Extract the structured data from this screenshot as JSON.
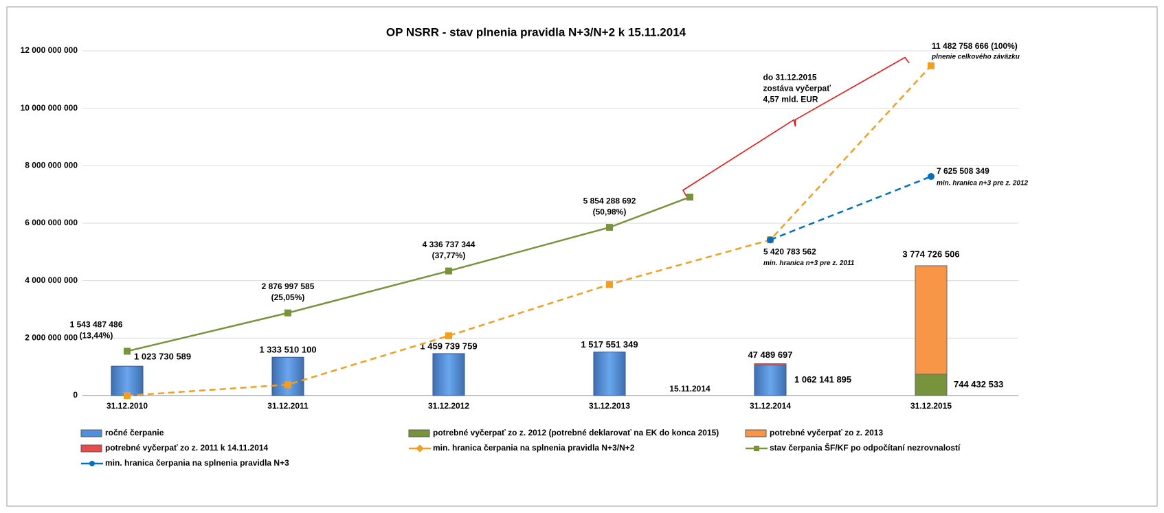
{
  "chart_data": {
    "type": "combo",
    "title": "OP NSRR - stav plnenia pravidla N+3/N+2 k 15.11.2014",
    "categories": [
      "31.12.2010",
      "31.12.2011",
      "31.12.2012",
      "31.12.2013",
      "31.12.2014",
      "31.12.2015"
    ],
    "ylim": [
      0,
      12000000000
    ],
    "yticks": [
      0,
      {
        "value": 2000000000,
        "label": "2 000 000 000"
      },
      {
        "value": 4000000000,
        "label": "4 000 000 000"
      },
      {
        "value": 6000000000,
        "label": "6 000 000 000"
      },
      {
        "value": 8000000000,
        "label": "8 000 000 000"
      },
      {
        "value": 10000000000,
        "label": "10 000 000 000"
      },
      {
        "value": 12000000000,
        "label": "12 000 000 000"
      }
    ],
    "grid": true,
    "series": [
      {
        "name": "ročné čerpanie",
        "kind": "bar",
        "color": "#4f8fdc",
        "label_color": "#1f3864",
        "values": [
          1023730589,
          1333510100,
          1459739759,
          1517551349,
          1062141895,
          null
        ],
        "value_labels": [
          "1 023 730 589",
          "1 333 510 100",
          "1 459 739 759",
          "1 517 551 349",
          "1 062 141 895",
          null
        ]
      },
      {
        "name": "potrebné vyčerpať zo z. 2012 (potrebné deklarovať na EK do konca 2015)",
        "kind": "bar",
        "color": "#77933c",
        "label_color": "#77933c",
        "values": [
          null,
          null,
          null,
          null,
          null,
          744432533
        ],
        "value_labels": [
          null,
          null,
          null,
          null,
          null,
          "744 432 533"
        ]
      },
      {
        "name": "potrebné vyčerpať zo z. 2013",
        "kind": "bar",
        "color": "#f79646",
        "label_color": "#e46c0a",
        "values": [
          null,
          null,
          null,
          null,
          null,
          3774726506
        ],
        "value_labels": [
          null,
          null,
          null,
          null,
          null,
          "3 774 726 506"
        ]
      },
      {
        "name": "potrebné vyčerpať zo z. 2011 k 14.11.2014",
        "kind": "bar",
        "color": "#e84c4c",
        "label_color": "#ff0000",
        "values": [
          null,
          null,
          null,
          null,
          47489697,
          null
        ],
        "value_labels": [
          null,
          null,
          null,
          null,
          "47 489 697",
          null
        ]
      },
      {
        "name": "min. hranica čerpania na splnenia pravidla N+3/N+2",
        "kind": "line",
        "color": "#f59d1d",
        "dashed": true,
        "marker": "square",
        "values": [
          0,
          380000000,
          2080000000,
          3870000000,
          5420783562,
          11482758666
        ],
        "value_labels": [
          null,
          null,
          null,
          null,
          "5 420 783 562",
          "11 482 758 666 (100%)"
        ],
        "notes": [
          null,
          null,
          null,
          null,
          "min. hranica n+3 pre z. 2011",
          "plnenie celkového záväzku"
        ]
      },
      {
        "name": "stav čerpania ŠF/KF po odpočítaní nezrovnalostí",
        "kind": "line",
        "color": "#77933c",
        "dashed": false,
        "marker": "square",
        "values": [
          1543487486,
          2876997585,
          4336737344,
          5854288692,
          null,
          null
        ],
        "value_labels": [
          "1 543 487 486",
          "2 876 997 585",
          "4 336 737 344",
          "5 854 288 692",
          null,
          null
        ],
        "percent_labels": [
          "(13,44%)",
          "(25,05%)",
          "(37,77%)",
          "(50,98%)",
          null,
          null
        ]
      },
      {
        "name": "min. hranica čerpania  na splnenia pravidla N+3",
        "kind": "line",
        "color": "#0070c0",
        "dashed": true,
        "marker": "circle",
        "values": [
          null,
          null,
          null,
          null,
          5420783562,
          7625508349
        ],
        "value_labels": [
          null,
          null,
          null,
          null,
          null,
          "7 625 508 349"
        ],
        "notes": [
          null,
          null,
          null,
          null,
          null,
          "min. hranica n+3 pre z. 2012"
        ]
      }
    ],
    "current": {
      "label": "15.11.2014",
      "value": 6910000000
    },
    "bracket": {
      "color": "#ff0000",
      "text": [
        "do 31.12.2015",
        "zostáva vyčerpať",
        "4,57 mld. EUR"
      ]
    }
  }
}
